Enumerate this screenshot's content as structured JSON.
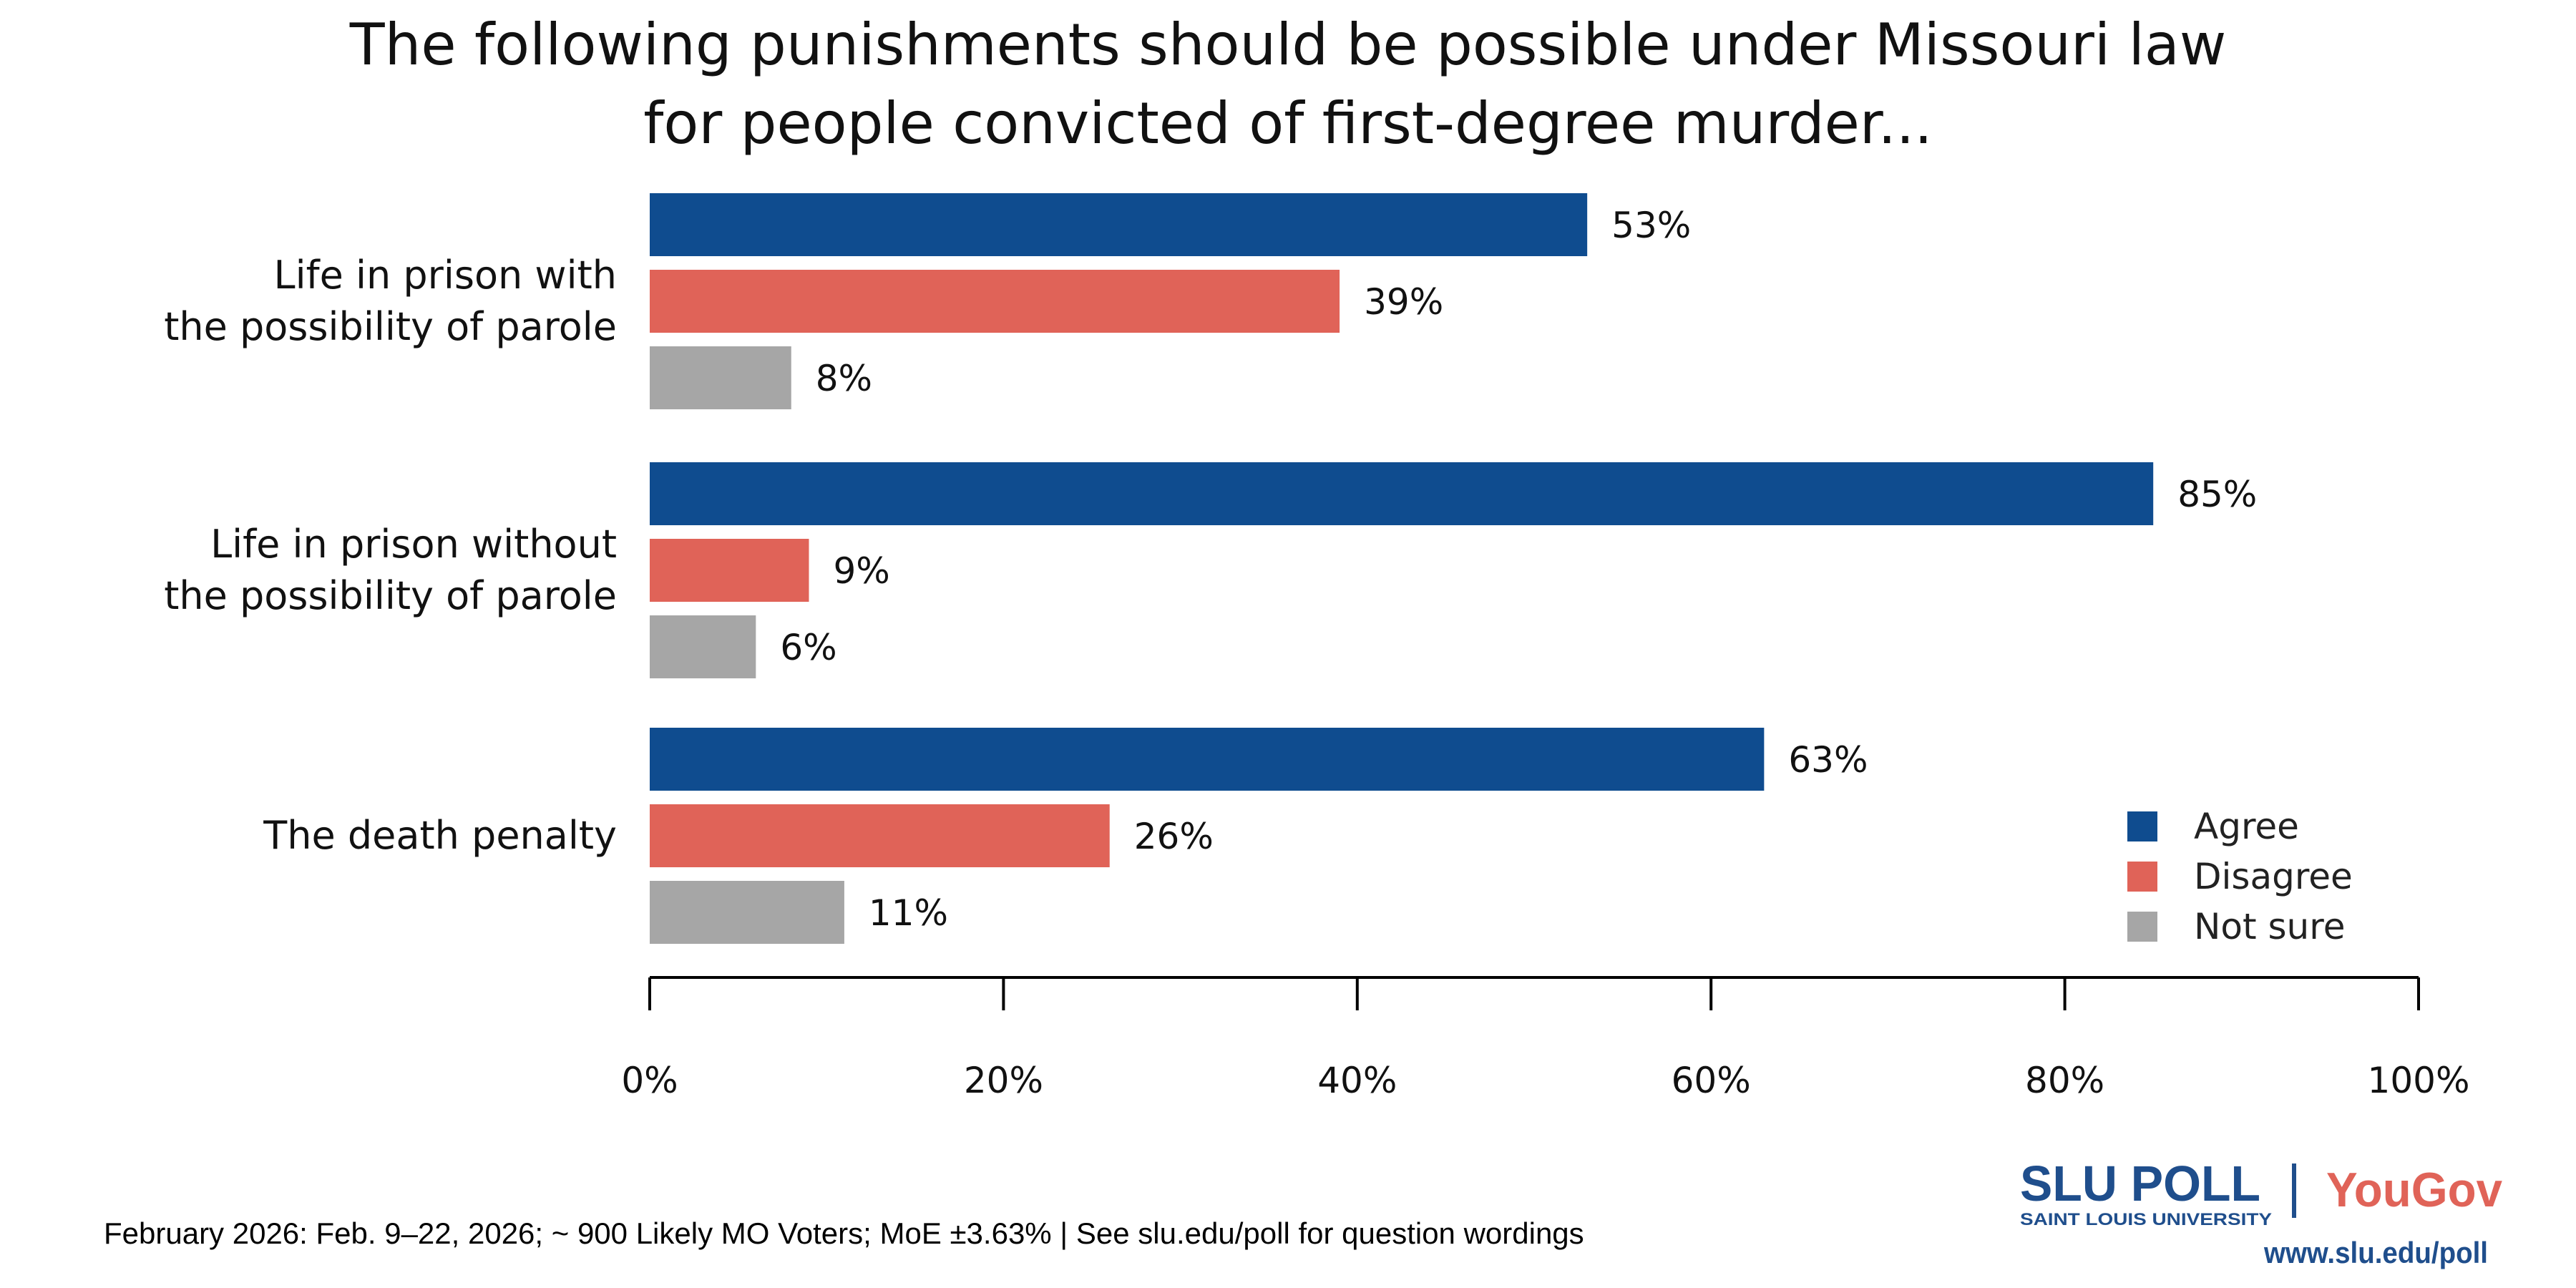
{
  "chart_data": {
    "type": "bar",
    "orientation": "horizontal",
    "title": [
      "The following punishments should be possible under Missouri law",
      "for people convicted of first-degree murder..."
    ],
    "categories": [
      [
        "Life in prison with",
        "the possibility of parole"
      ],
      [
        "Life in prison without",
        "the possibility of parole"
      ],
      [
        "The death penalty"
      ]
    ],
    "series": [
      {
        "name": "Agree",
        "color": "#0f4c8f",
        "values": [
          53,
          85,
          63
        ]
      },
      {
        "name": "Disagree",
        "color": "#e06358",
        "values": [
          39,
          9,
          26
        ]
      },
      {
        "name": "Not sure",
        "color": "#a6a6a6",
        "values": [
          8,
          6,
          11
        ]
      }
    ],
    "value_suffix": "%",
    "xlim": [
      0,
      100
    ],
    "xticks": [
      "0%",
      "20%",
      "40%",
      "60%",
      "80%",
      "100%"
    ],
    "xtick_values": [
      0,
      20,
      40,
      60,
      80,
      100
    ],
    "grid": false,
    "legend_position": "bottom-right"
  },
  "footer": {
    "note": "February 2026: Feb. 9–22, 2026; ~ 900 Likely MO Voters; MoE ±3.63%  |  See slu.edu/poll for question wordings",
    "logo_slu": "SLU POLL",
    "logo_slu_sub": "SAINT LOUIS UNIVERSITY",
    "logo_yougov": "YouGov",
    "url": "www.slu.edu/poll"
  }
}
